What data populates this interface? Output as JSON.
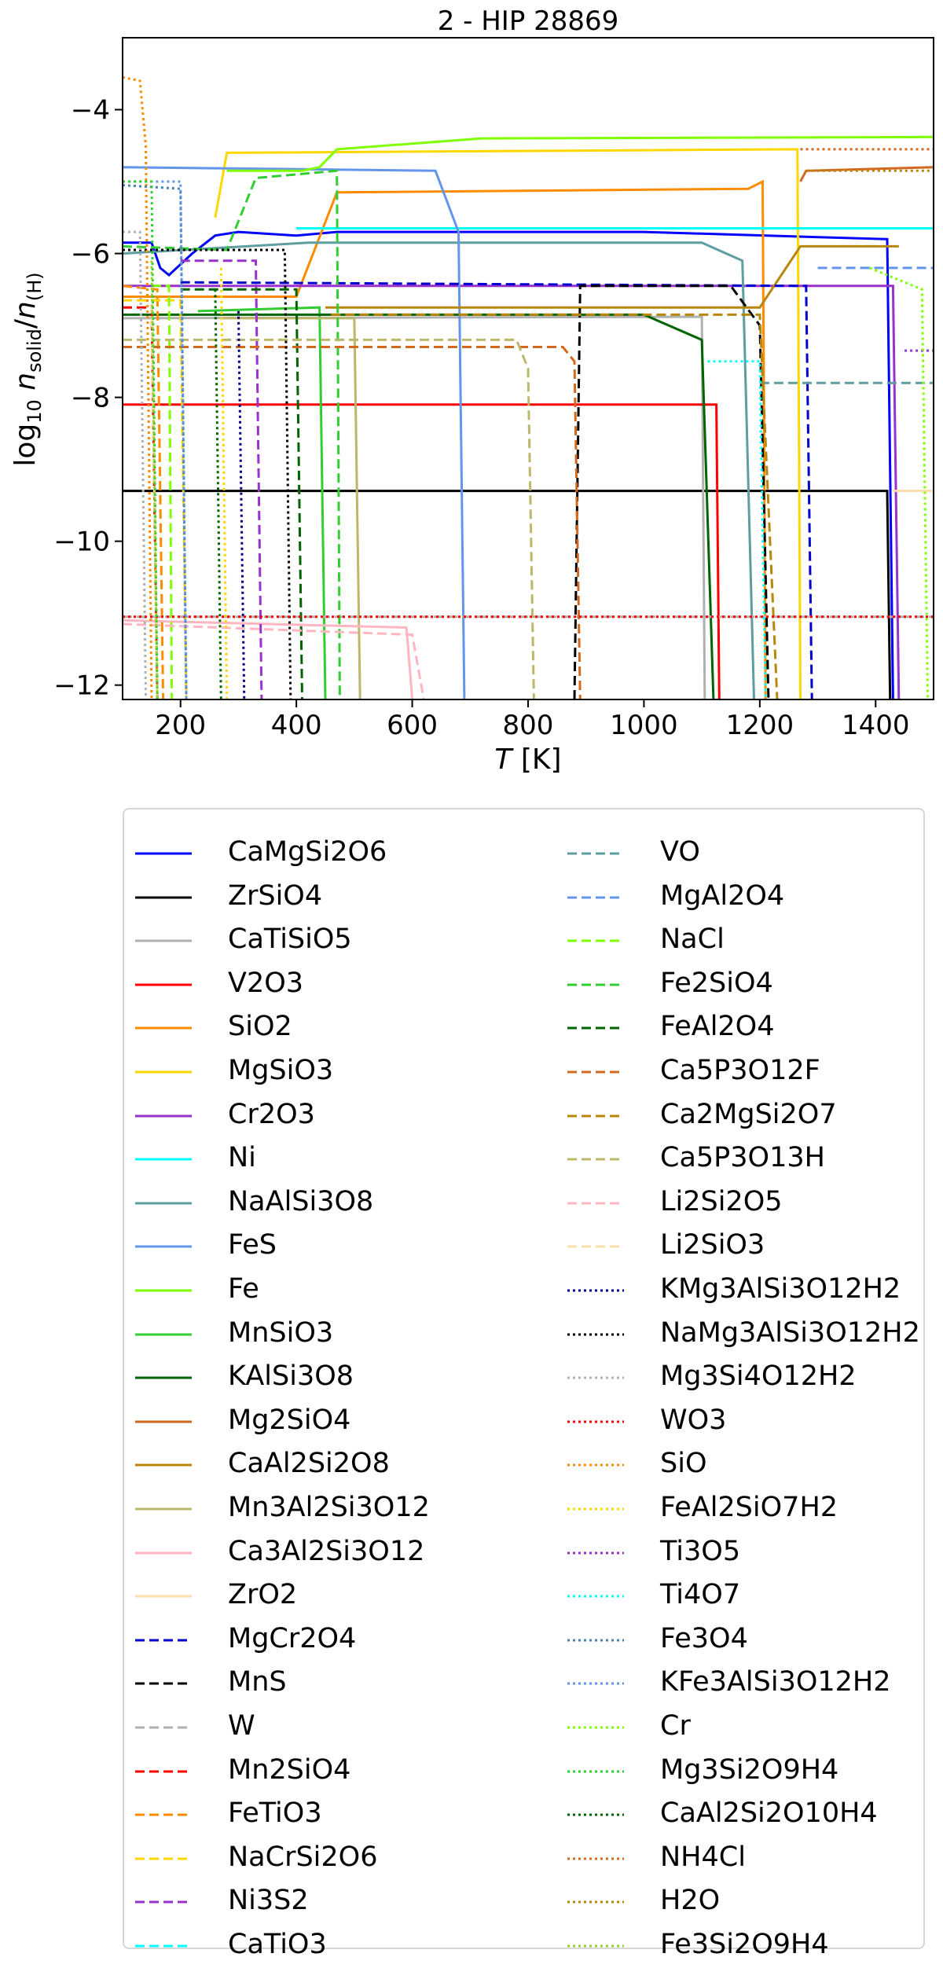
{
  "chart_data": {
    "type": "line",
    "title": "2 - HIP 28869",
    "xlabel": "T [K]",
    "ylabel": "log10 n_solid/n_(H)",
    "xlim": [
      100,
      1500
    ],
    "ylim": [
      -12.2,
      -3.0
    ],
    "x_ticks": [
      200,
      400,
      600,
      800,
      1000,
      1200,
      1400
    ],
    "y_ticks": [
      -4,
      -6,
      -8,
      -10,
      -12
    ],
    "grid": false,
    "legend_placement": "below",
    "series": [
      {
        "name": "CaMgSi2O6",
        "color": "#0000ff",
        "dash": "solid",
        "points": [
          [
            100,
            -5.85
          ],
          [
            150,
            -5.85
          ],
          [
            165,
            -6.2
          ],
          [
            180,
            -6.3
          ],
          [
            220,
            -6.0
          ],
          [
            260,
            -5.75
          ],
          [
            300,
            -5.7
          ],
          [
            400,
            -5.75
          ],
          [
            470,
            -5.7
          ],
          [
            1000,
            -5.7
          ],
          [
            1420,
            -5.8
          ],
          [
            1430,
            -12.2
          ]
        ]
      },
      {
        "name": "ZrSiO4",
        "color": "#000000",
        "dash": "solid",
        "points": [
          [
            100,
            -9.3
          ],
          [
            1420,
            -9.3
          ],
          [
            1425,
            -12.2
          ]
        ]
      },
      {
        "name": "CaTiSiO5",
        "color": "#b0b0b0",
        "dash": "solid",
        "points": [
          [
            100,
            -6.9
          ],
          [
            1100,
            -6.88
          ],
          [
            1105,
            -12.2
          ]
        ]
      },
      {
        "name": "V2O3",
        "color": "#ff0000",
        "dash": "solid",
        "points": [
          [
            100,
            -8.1
          ],
          [
            1125,
            -8.1
          ],
          [
            1130,
            -12.2
          ]
        ]
      },
      {
        "name": "SiO2",
        "color": "#ff8c00",
        "dash": "solid",
        "points": [
          [
            100,
            -6.6
          ],
          [
            400,
            -6.6
          ],
          [
            470,
            -5.15
          ],
          [
            1180,
            -5.1
          ],
          [
            1205,
            -5.0
          ],
          [
            1210,
            -12.2
          ]
        ]
      },
      {
        "name": "MgSiO3",
        "color": "#ffd700",
        "dash": "solid",
        "points": [
          [
            260,
            -5.5
          ],
          [
            280,
            -4.6
          ],
          [
            1265,
            -4.55
          ],
          [
            1270,
            -12.2
          ]
        ]
      },
      {
        "name": "Cr2O3",
        "color": "#9932cc",
        "dash": "solid",
        "points": [
          [
            100,
            -6.45
          ],
          [
            1430,
            -6.45
          ],
          [
            1440,
            -12.2
          ]
        ]
      },
      {
        "name": "Ni",
        "color": "#00ffff",
        "dash": "solid",
        "points": [
          [
            400,
            -5.65
          ],
          [
            1500,
            -5.65
          ]
        ]
      },
      {
        "name": "NaAlSi3O8",
        "color": "#5f9ea0",
        "dash": "solid",
        "points": [
          [
            100,
            -6.0
          ],
          [
            420,
            -5.85
          ],
          [
            1100,
            -5.85
          ],
          [
            1170,
            -6.1
          ],
          [
            1190,
            -12.2
          ]
        ]
      },
      {
        "name": "FeS",
        "color": "#6495ed",
        "dash": "solid",
        "points": [
          [
            100,
            -4.8
          ],
          [
            640,
            -4.85
          ],
          [
            680,
            -5.7
          ],
          [
            690,
            -12.2
          ]
        ]
      },
      {
        "name": "Fe",
        "color": "#7fff00",
        "dash": "solid",
        "points": [
          [
            280,
            -4.85
          ],
          [
            410,
            -4.85
          ],
          [
            440,
            -4.8
          ],
          [
            470,
            -4.55
          ],
          [
            720,
            -4.4
          ],
          [
            1500,
            -4.38
          ]
        ]
      },
      {
        "name": "MnSiO3",
        "color": "#32cd32",
        "dash": "solid",
        "points": [
          [
            230,
            -6.8
          ],
          [
            440,
            -6.75
          ],
          [
            450,
            -12.2
          ]
        ]
      },
      {
        "name": "KAlSi3O8",
        "color": "#006400",
        "dash": "solid",
        "points": [
          [
            100,
            -6.85
          ],
          [
            1000,
            -6.85
          ],
          [
            1100,
            -7.2
          ],
          [
            1120,
            -12.2
          ]
        ]
      },
      {
        "name": "Mg2SiO4",
        "color": "#d2691e",
        "dash": "solid",
        "points": [
          [
            1270,
            -5.0
          ],
          [
            1280,
            -4.85
          ],
          [
            1500,
            -4.8
          ]
        ]
      },
      {
        "name": "CaAl2Si2O8",
        "color": "#b8860b",
        "dash": "solid",
        "points": [
          [
            450,
            -6.75
          ],
          [
            1200,
            -6.75
          ],
          [
            1270,
            -5.9
          ],
          [
            1440,
            -5.9
          ]
        ]
      },
      {
        "name": "Mn3Al2Si3O12",
        "color": "#bdb76b",
        "dash": "solid",
        "points": [
          [
            270,
            -6.9
          ],
          [
            500,
            -6.9
          ],
          [
            510,
            -12.2
          ]
        ]
      },
      {
        "name": "Ca3Al2Si3O12",
        "color": "#ffb6c1",
        "dash": "solid",
        "points": [
          [
            100,
            -11.1
          ],
          [
            590,
            -11.2
          ],
          [
            600,
            -12.2
          ]
        ]
      },
      {
        "name": "ZrO2",
        "color": "#ffdead",
        "dash": "solid",
        "points": [
          [
            1430,
            -9.3
          ],
          [
            1500,
            -9.3
          ]
        ]
      },
      {
        "name": "MgCr2O4",
        "color": "#0000cd",
        "dash": "dashed",
        "points": [
          [
            200,
            -6.4
          ],
          [
            1280,
            -6.45
          ],
          [
            1290,
            -12.2
          ]
        ]
      },
      {
        "name": "MnS",
        "color": "#000000",
        "dash": "dashed",
        "points": [
          [
            880,
            -12.2
          ],
          [
            890,
            -6.45
          ],
          [
            1150,
            -6.45
          ],
          [
            1200,
            -7.0
          ],
          [
            1215,
            -12.2
          ]
        ]
      },
      {
        "name": "W",
        "color": "#b0b0b0",
        "dash": "dashed",
        "points": [
          [
            100,
            -11.05
          ],
          [
            1500,
            -11.05
          ]
        ]
      },
      {
        "name": "Mn2SiO4",
        "color": "#ff0000",
        "dash": "dashed",
        "points": [
          [
            100,
            -6.75
          ],
          [
            150,
            -6.75
          ],
          [
            160,
            -12.2
          ]
        ]
      },
      {
        "name": "FeTiO3",
        "color": "#ff8c00",
        "dash": "dashed",
        "points": [
          [
            100,
            -6.45
          ],
          [
            160,
            -6.5
          ],
          [
            170,
            -12.2
          ]
        ]
      },
      {
        "name": "NaCrSi2O6",
        "color": "#ffd700",
        "dash": "dashed",
        "points": [
          [
            100,
            -6.65
          ],
          [
            200,
            -6.65
          ],
          [
            210,
            -12.2
          ]
        ]
      },
      {
        "name": "Ni3S2",
        "color": "#9932cc",
        "dash": "dashed",
        "points": [
          [
            200,
            -6.1
          ],
          [
            330,
            -6.1
          ],
          [
            340,
            -12.2
          ]
        ]
      },
      {
        "name": "CaTiO3",
        "color": "#00ffff",
        "dash": "dashed",
        "points": [
          [
            1270,
            -5.65
          ],
          [
            1500,
            -5.65
          ]
        ]
      },
      {
        "name": "VO",
        "color": "#5f9ea0",
        "dash": "dashed",
        "points": [
          [
            1200,
            -7.8
          ],
          [
            1500,
            -7.8
          ]
        ]
      },
      {
        "name": "MgAl2O4",
        "color": "#6495ed",
        "dash": "dashed",
        "points": [
          [
            1300,
            -6.2
          ],
          [
            1500,
            -6.2
          ]
        ]
      },
      {
        "name": "NaCl",
        "color": "#7fff00",
        "dash": "dashed",
        "points": [
          [
            150,
            -6.45
          ],
          [
            180,
            -6.45
          ],
          [
            185,
            -12.2
          ]
        ]
      },
      {
        "name": "Fe2SiO4",
        "color": "#32cd32",
        "dash": "dashed",
        "points": [
          [
            100,
            -5.9
          ],
          [
            280,
            -5.95
          ],
          [
            330,
            -4.95
          ],
          [
            470,
            -4.85
          ],
          [
            475,
            -12.2
          ]
        ]
      },
      {
        "name": "FeAl2O4",
        "color": "#006400",
        "dash": "dashed",
        "points": [
          [
            200,
            -6.5
          ],
          [
            400,
            -6.5
          ],
          [
            410,
            -12.2
          ]
        ]
      },
      {
        "name": "Ca5P3O12F",
        "color": "#d2691e",
        "dash": "dashed",
        "points": [
          [
            100,
            -7.3
          ],
          [
            860,
            -7.3
          ],
          [
            880,
            -7.5
          ],
          [
            890,
            -12.2
          ]
        ]
      },
      {
        "name": "Ca2MgSi2O7",
        "color": "#b8860b",
        "dash": "dashed",
        "points": [
          [
            460,
            -6.85
          ],
          [
            1200,
            -6.85
          ],
          [
            1230,
            -12.2
          ]
        ]
      },
      {
        "name": "Ca5P3O13H",
        "color": "#bdb76b",
        "dash": "dashed",
        "points": [
          [
            100,
            -7.2
          ],
          [
            780,
            -7.2
          ],
          [
            800,
            -7.6
          ],
          [
            810,
            -12.2
          ]
        ]
      },
      {
        "name": "Li2Si2O5",
        "color": "#ffb6c1",
        "dash": "dashed",
        "points": [
          [
            100,
            -11.15
          ],
          [
            600,
            -11.3
          ],
          [
            620,
            -12.2
          ]
        ]
      },
      {
        "name": "Li2SiO3",
        "color": "#ffdead",
        "dash": "dashed",
        "points": [
          [
            150,
            -6.7
          ],
          [
            160,
            -12.2
          ]
        ]
      },
      {
        "name": "KMg3AlSi3O12H2",
        "color": "#00008b",
        "dash": "dotted",
        "points": [
          [
            300,
            -6.8
          ],
          [
            310,
            -12.2
          ]
        ]
      },
      {
        "name": "NaMg3AlSi3O12H2",
        "color": "#000000",
        "dash": "dotted",
        "points": [
          [
            100,
            -5.95
          ],
          [
            380,
            -5.95
          ],
          [
            390,
            -12.2
          ]
        ]
      },
      {
        "name": "Mg3Si4O12H2",
        "color": "#b0b0b0",
        "dash": "dotted",
        "points": [
          [
            100,
            -5.7
          ],
          [
            130,
            -5.7
          ],
          [
            140,
            -12.2
          ]
        ]
      },
      {
        "name": "WO3",
        "color": "#ff0000",
        "dash": "dotted",
        "points": [
          [
            100,
            -11.05
          ],
          [
            1500,
            -11.05
          ]
        ]
      },
      {
        "name": "SiO",
        "color": "#ff8c00",
        "dash": "dotted",
        "points": [
          [
            100,
            -3.55
          ],
          [
            130,
            -3.6
          ],
          [
            140,
            -4.5
          ],
          [
            150,
            -12.2
          ]
        ]
      },
      {
        "name": "FeAl2SiO7H2",
        "color": "#ffd700",
        "dash": "dotted",
        "points": [
          [
            270,
            -6.2
          ],
          [
            280,
            -12.2
          ]
        ]
      },
      {
        "name": "Ti3O5",
        "color": "#9932cc",
        "dash": "dotted",
        "points": [
          [
            1450,
            -7.35
          ],
          [
            1500,
            -7.35
          ]
        ]
      },
      {
        "name": "Ti4O7",
        "color": "#00ffff",
        "dash": "dotted",
        "points": [
          [
            1110,
            -7.5
          ],
          [
            1200,
            -7.5
          ],
          [
            1210,
            -12.2
          ]
        ]
      },
      {
        "name": "Fe3O4",
        "color": "#4682b4",
        "dash": "dotted",
        "points": [
          [
            100,
            -5.05
          ],
          [
            200,
            -5.1
          ],
          [
            210,
            -12.2
          ]
        ]
      },
      {
        "name": "KFe3AlSi3O12H2",
        "color": "#6495ed",
        "dash": "dotted",
        "points": [
          [
            110,
            -5.0
          ],
          [
            200,
            -5.0
          ],
          [
            210,
            -12.2
          ]
        ]
      },
      {
        "name": "Cr",
        "color": "#7fff00",
        "dash": "dotted",
        "points": [
          [
            1390,
            -6.2
          ],
          [
            1480,
            -6.5
          ],
          [
            1490,
            -12.2
          ]
        ]
      },
      {
        "name": "Mg3Si2O9H4",
        "color": "#32cd32",
        "dash": "dotted",
        "points": [
          [
            100,
            -5.0
          ],
          [
            150,
            -5.0
          ],
          [
            160,
            -12.2
          ]
        ]
      },
      {
        "name": "CaAl2Si2O10H4",
        "color": "#006400",
        "dash": "dotted",
        "points": [
          [
            260,
            -6.5
          ],
          [
            270,
            -12.2
          ]
        ]
      },
      {
        "name": "NH4Cl",
        "color": "#d2691e",
        "dash": "dotted",
        "points": [
          [
            1270,
            -4.55
          ],
          [
            1500,
            -4.55
          ]
        ]
      },
      {
        "name": "H2O",
        "color": "#b8860b",
        "dash": "dotted",
        "points": [
          [
            1280,
            -4.85
          ],
          [
            1500,
            -4.85
          ]
        ]
      },
      {
        "name": "Fe3Si2O9H4",
        "color": "#9acd32",
        "dash": "dotted",
        "points": [
          [
            150,
            -6.1
          ],
          [
            160,
            -12.2
          ]
        ]
      }
    ]
  }
}
